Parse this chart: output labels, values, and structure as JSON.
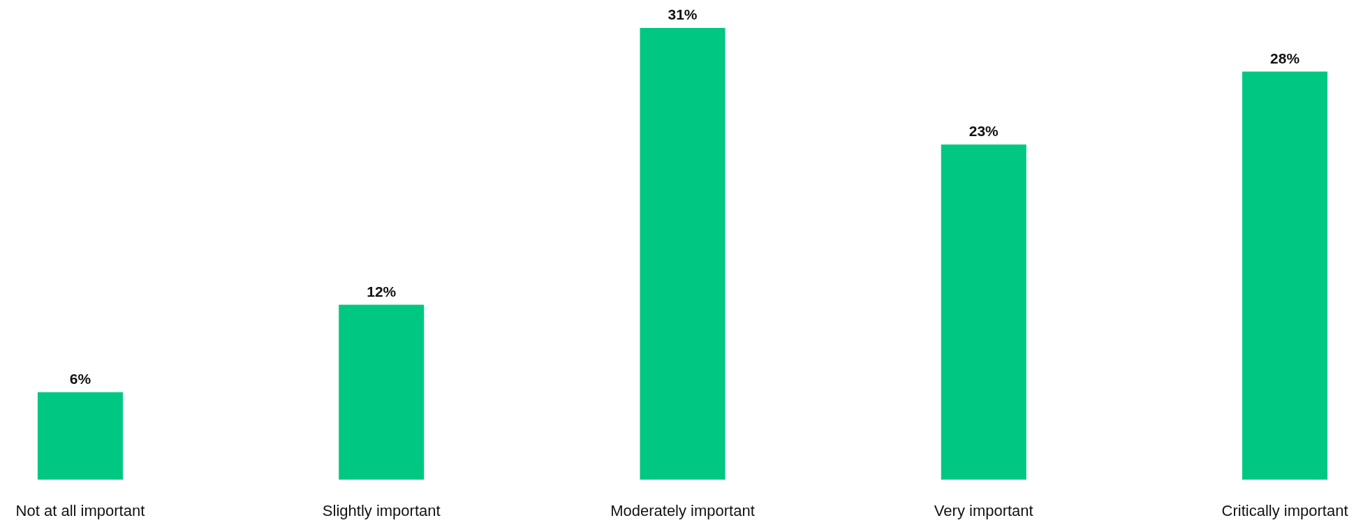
{
  "chart_data": {
    "type": "bar",
    "categories": [
      "Not at all important",
      "Slightly important",
      "Moderately important",
      "Very important",
      "Critically important"
    ],
    "values": [
      6,
      12,
      31,
      23,
      28
    ],
    "color": "#00c882",
    "value_labels": [
      "6%",
      "12%",
      "31%",
      "23%",
      "28%"
    ]
  }
}
